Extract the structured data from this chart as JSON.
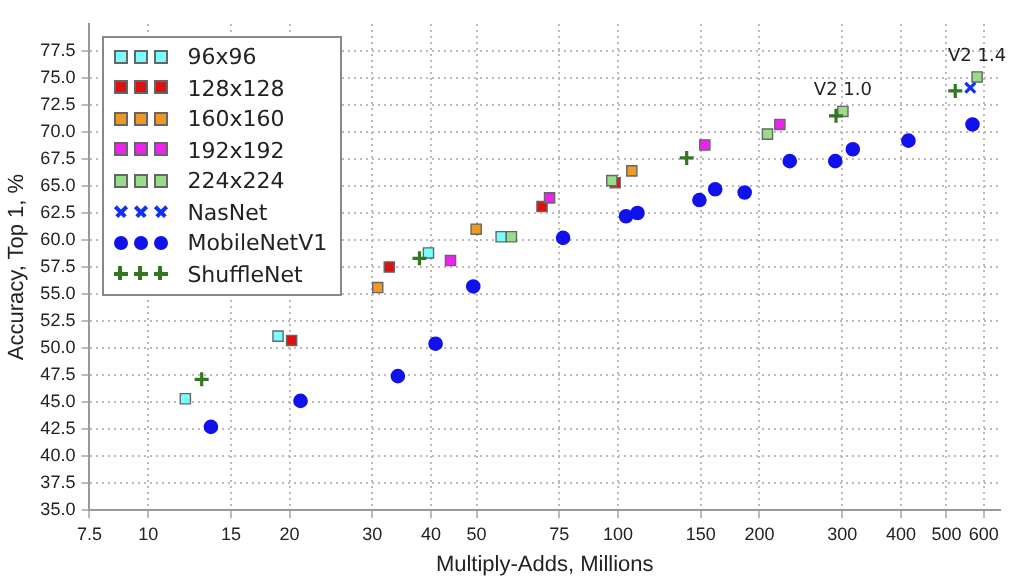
{
  "chart_data": {
    "type": "scatter",
    "xlabel": "Multiply-Adds, Millions",
    "ylabel": "Accuracy, Top 1, %",
    "log": "x",
    "grid": true,
    "legend": "top left",
    "xlim": [
      7.5,
      650
    ],
    "xticks": [
      7.5,
      10,
      15,
      20,
      30,
      40,
      50,
      75,
      100,
      150,
      200,
      300,
      400,
      500,
      600
    ],
    "ylim": [
      35,
      80
    ],
    "yticks": [
      {
        "value": 35,
        "label": "35.0"
      },
      37.5,
      {
        "value": 40,
        "label": "40.0"
      },
      42.5,
      {
        "value": 45,
        "label": "45.0"
      },
      47.5,
      {
        "value": 50,
        "label": "50.0"
      },
      52.5,
      {
        "value": 55,
        "label": "55.0"
      },
      57.5,
      {
        "value": 60,
        "label": "60.0"
      },
      62.5,
      {
        "value": 65,
        "label": "65.0"
      },
      67.5,
      {
        "value": 70,
        "label": "70.0"
      },
      72.5,
      {
        "value": 75,
        "label": "75.0"
      },
      77.5
    ],
    "series": [
      {
        "name": "96x96",
        "color": "#77ffff",
        "marker": "square",
        "x": [
          12.0,
          18.9,
          39.5,
          56.4
        ],
        "values": [
          45.3,
          51.1,
          58.8,
          60.3
        ]
      },
      {
        "name": "128x128",
        "color": "#dd1111",
        "marker": "square",
        "x": [
          20.2,
          32.6,
          68.9,
          98.6
        ],
        "values": [
          50.7,
          57.5,
          63.1,
          65.3
        ]
      },
      {
        "name": "160x160",
        "color": "#ee9922",
        "marker": "square",
        "x": [
          30.8,
          49.9,
          107
        ],
        "values": [
          55.6,
          61.0,
          66.4
        ]
      },
      {
        "name": "192x192",
        "color": "#ee22ee",
        "marker": "square",
        "x": [
          44.0,
          71.5,
          153,
          221
        ],
        "values": [
          58.1,
          63.9,
          68.8,
          70.7
        ]
      },
      {
        "name": "224x224",
        "color": "#99dd88",
        "marker": "square",
        "x": [
          59.3,
          97,
          208,
          301,
          581
        ],
        "values": [
          60.3,
          65.5,
          69.8,
          71.9,
          75.1
        ]
      },
      {
        "name": "NasNet",
        "color": "#1133ee",
        "marker": "x",
        "x": [
          562
        ],
        "values": [
          74.1
        ]
      },
      {
        "name": "MobileNetV1",
        "color": "#1111ee",
        "marker": "circle",
        "x": [
          13.6,
          21.1,
          34.0,
          40.9,
          49.2,
          76.4,
          104,
          110,
          149,
          161,
          186,
          232,
          290,
          316,
          415,
          568
        ],
        "values": [
          42.7,
          45.1,
          47.4,
          50.4,
          55.7,
          60.2,
          62.2,
          62.5,
          63.7,
          64.7,
          64.4,
          67.3,
          67.3,
          68.4,
          69.2,
          70.7
        ]
      },
      {
        "name": "ShuffleNet",
        "color": "#337722",
        "marker": "cross",
        "x": [
          13.0,
          37.8,
          140,
          291,
          522
        ],
        "values": [
          47.1,
          58.3,
          67.6,
          71.5,
          73.8
        ]
      }
    ],
    "annotations": [
      {
        "text": "V2 1.0",
        "x": 301,
        "y": 71.9
      },
      {
        "text": "V2 1.4",
        "x": 581,
        "y": 75.1
      }
    ]
  }
}
